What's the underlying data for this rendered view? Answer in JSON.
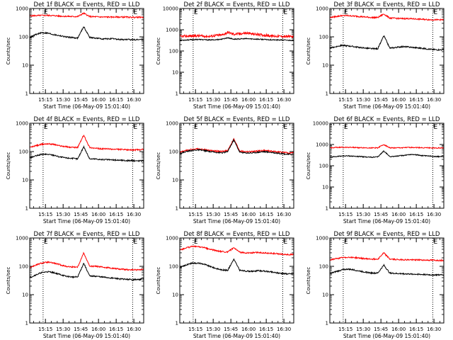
{
  "chart_data": [
    {
      "type": "line",
      "title": "Det 1f BLACK = Events, RED = LLD",
      "xlabel": "Start Time (06-May-09 15:01:40)",
      "ylabel": "Counts/sec",
      "ylim": [
        1,
        1000
      ],
      "y_scale": "log",
      "y_ticks": [
        "1",
        "10",
        "100",
        "1000"
      ],
      "x_ticks": [
        "15:15",
        "15:30",
        "15:45",
        "16:00",
        "16:15",
        "16:30"
      ],
      "grid": false,
      "markers": [
        {
          "label": "E",
          "x_min": 13
        },
        {
          "label": "E",
          "x_min": 89
        }
      ],
      "series": [
        {
          "color": "#ff0000",
          "values": [
            550,
            560,
            570,
            570,
            560,
            540,
            530,
            520,
            520,
            680,
            520,
            510,
            500,
            500,
            500,
            500,
            500,
            490,
            490,
            490
          ]
        },
        {
          "color": "#000000",
          "values": [
            95,
            120,
            140,
            135,
            120,
            110,
            100,
            95,
            90,
            230,
            95,
            90,
            85,
            85,
            85,
            80,
            80,
            80,
            80,
            80
          ]
        }
      ]
    },
    {
      "type": "line",
      "title": "Det 2f BLACK = Events, RED = LLD",
      "xlabel": "Start Time (06-May-09 15:01:40)",
      "ylabel": "Counts/sec",
      "ylim": [
        1,
        10000
      ],
      "y_scale": "log",
      "y_ticks": [
        "1",
        "10",
        "100",
        "1000",
        "10000"
      ],
      "x_ticks": [
        "15:15",
        "15:30",
        "15:45",
        "16:00",
        "16:15",
        "16:30"
      ],
      "grid": false,
      "markers": [
        {
          "label": "E",
          "x_min": 13
        },
        {
          "label": "E",
          "x_min": 89
        }
      ],
      "series": [
        {
          "color": "#ff0000",
          "values": [
            480,
            500,
            510,
            520,
            500,
            490,
            540,
            560,
            760,
            620,
            650,
            700,
            640,
            600,
            560,
            520,
            500,
            490,
            480,
            470
          ]
        },
        {
          "color": "#000000",
          "values": [
            320,
            330,
            340,
            350,
            340,
            330,
            340,
            360,
            420,
            360,
            370,
            380,
            370,
            360,
            350,
            340,
            330,
            330,
            320,
            320
          ]
        }
      ]
    },
    {
      "type": "line",
      "title": "Det 3f BLACK = Events, RED = LLD",
      "xlabel": "Start Time (06-May-09 15:01:40)",
      "ylabel": "Counts/sec",
      "ylim": [
        1,
        1000
      ],
      "y_scale": "log",
      "y_ticks": [
        "1",
        "10",
        "100",
        "1000"
      ],
      "x_ticks": [
        "15:15",
        "15:30",
        "15:45",
        "16:00",
        "16:15",
        "16:30"
      ],
      "grid": false,
      "markers": [
        {
          "label": "E",
          "x_min": 13
        },
        {
          "label": "E",
          "x_min": 89
        }
      ],
      "series": [
        {
          "color": "#ff0000",
          "values": [
            480,
            520,
            560,
            560,
            540,
            520,
            500,
            480,
            480,
            640,
            460,
            450,
            440,
            440,
            430,
            420,
            410,
            400,
            400,
            400
          ]
        },
        {
          "color": "#000000",
          "values": [
            40,
            45,
            50,
            48,
            45,
            42,
            40,
            38,
            38,
            110,
            40,
            42,
            45,
            44,
            42,
            40,
            38,
            36,
            35,
            35
          ]
        }
      ]
    },
    {
      "type": "line",
      "title": "Det 4f BLACK = Events, RED = LLD",
      "xlabel": "Start Time (06-May-09 15:01:40)",
      "ylabel": "Counts/sec",
      "ylim": [
        1,
        1000
      ],
      "y_scale": "log",
      "y_ticks": [
        "1",
        "10",
        "100",
        "1000"
      ],
      "x_ticks": [
        "15:15",
        "15:30",
        "15:45",
        "16:00",
        "16:15",
        "16:30"
      ],
      "grid": false,
      "markers": [
        {
          "label": "E",
          "x_min": 13
        },
        {
          "label": "E",
          "x_min": 89
        }
      ],
      "series": [
        {
          "color": "#ff0000",
          "values": [
            140,
            160,
            180,
            190,
            180,
            160,
            150,
            140,
            140,
            380,
            140,
            130,
            125,
            125,
            120,
            120,
            115,
            115,
            115,
            120
          ]
        },
        {
          "color": "#000000",
          "values": [
            60,
            70,
            80,
            80,
            75,
            65,
            60,
            58,
            55,
            150,
            55,
            55,
            52,
            52,
            50,
            50,
            48,
            48,
            47,
            48
          ]
        }
      ]
    },
    {
      "type": "line",
      "title": "Det 5f BLACK = Events, RED = LLD",
      "xlabel": "Start Time (06-May-09 15:01:40)",
      "ylabel": "Counts/sec",
      "ylim": [
        1,
        1000
      ],
      "y_scale": "log",
      "y_ticks": [
        "1",
        "10",
        "100",
        "1000"
      ],
      "x_ticks": [
        "15:15",
        "15:30",
        "15:45",
        "16:00",
        "16:15",
        "16:30"
      ],
      "grid": false,
      "markers": [
        {
          "label": "E",
          "x_min": 13
        },
        {
          "label": "E",
          "x_min": 89
        }
      ],
      "series": [
        {
          "color": "#ff0000",
          "values": [
            95,
            110,
            120,
            125,
            120,
            110,
            105,
            100,
            110,
            280,
            105,
            100,
            100,
            105,
            110,
            105,
            100,
            95,
            90,
            90
          ]
        },
        {
          "color": "#000000",
          "values": [
            85,
            100,
            110,
            115,
            110,
            100,
            95,
            90,
            100,
            260,
            95,
            90,
            90,
            95,
            100,
            95,
            90,
            85,
            80,
            80
          ]
        }
      ]
    },
    {
      "type": "line",
      "title": "Det 6f BLACK = Events, RED = LLD",
      "xlabel": "Start Time (06-May-09 15:01:40)",
      "ylabel": "Counts/sec",
      "ylim": [
        1,
        10000
      ],
      "y_scale": "log",
      "y_ticks": [
        "1",
        "10",
        "100",
        "1000",
        "10000"
      ],
      "x_ticks": [
        "15:15",
        "15:30",
        "15:45",
        "16:00",
        "16:15",
        "16:30"
      ],
      "grid": false,
      "markers": [
        {
          "label": "E",
          "x_min": 13
        },
        {
          "label": "E",
          "x_min": 89
        }
      ],
      "series": [
        {
          "color": "#ff0000",
          "values": [
            700,
            720,
            740,
            740,
            730,
            710,
            700,
            690,
            700,
            1000,
            700,
            690,
            700,
            720,
            730,
            710,
            700,
            690,
            690,
            690
          ]
        },
        {
          "color": "#000000",
          "values": [
            250,
            270,
            290,
            290,
            280,
            270,
            260,
            250,
            260,
            500,
            270,
            280,
            300,
            330,
            340,
            310,
            290,
            280,
            270,
            270
          ]
        }
      ]
    },
    {
      "type": "line",
      "title": "Det 7f BLACK = Events, RED = LLD",
      "xlabel": "Start Time (06-May-09 15:01:40)",
      "ylabel": "Counts/sec",
      "ylim": [
        1,
        1000
      ],
      "y_scale": "log",
      "y_ticks": [
        "1",
        "10",
        "100",
        "1000"
      ],
      "x_ticks": [
        "15:15",
        "15:30",
        "15:45",
        "16:00",
        "16:15",
        "16:30"
      ],
      "grid": false,
      "markers": [
        {
          "label": "E",
          "x_min": 13
        },
        {
          "label": "E",
          "x_min": 89
        }
      ],
      "series": [
        {
          "color": "#ff0000",
          "values": [
            90,
            110,
            130,
            140,
            130,
            115,
            100,
            95,
            95,
            300,
            100,
            100,
            95,
            90,
            85,
            80,
            78,
            75,
            75,
            78
          ]
        },
        {
          "color": "#000000",
          "values": [
            40,
            50,
            60,
            65,
            60,
            52,
            45,
            42,
            42,
            130,
            45,
            45,
            42,
            40,
            38,
            36,
            35,
            34,
            34,
            36
          ]
        }
      ]
    },
    {
      "type": "line",
      "title": "Det 8f BLACK = Events, RED = LLD",
      "xlabel": "Start Time (06-May-09 15:01:40)",
      "ylabel": "Counts/sec",
      "ylim": [
        1,
        1000
      ],
      "y_scale": "log",
      "y_ticks": [
        "1",
        "10",
        "100",
        "1000"
      ],
      "x_ticks": [
        "15:15",
        "15:30",
        "15:45",
        "16:00",
        "16:15",
        "16:30"
      ],
      "grid": false,
      "markers": [
        {
          "label": "E",
          "x_min": 13
        },
        {
          "label": "E",
          "x_min": 89
        }
      ],
      "series": [
        {
          "color": "#ff0000",
          "values": [
            380,
            440,
            500,
            500,
            460,
            400,
            360,
            330,
            320,
            450,
            310,
            300,
            300,
            310,
            300,
            290,
            280,
            270,
            260,
            260
          ]
        },
        {
          "color": "#000000",
          "values": [
            90,
            110,
            130,
            130,
            120,
            100,
            85,
            75,
            72,
            180,
            72,
            68,
            66,
            70,
            68,
            64,
            60,
            56,
            54,
            55
          ]
        }
      ]
    },
    {
      "type": "line",
      "title": "Det 9f BLACK = Events, RED = LLD",
      "xlabel": "Start Time (06-May-09 15:01:40)",
      "ylabel": "Counts/sec",
      "ylim": [
        1,
        1000
      ],
      "y_scale": "log",
      "y_ticks": [
        "1",
        "10",
        "100",
        "1000"
      ],
      "x_ticks": [
        "15:15",
        "15:30",
        "15:45",
        "16:00",
        "16:15",
        "16:30"
      ],
      "grid": false,
      "markers": [
        {
          "label": "E",
          "x_min": 13
        },
        {
          "label": "E",
          "x_min": 89
        }
      ],
      "series": [
        {
          "color": "#ff0000",
          "values": [
            170,
            185,
            200,
            210,
            205,
            195,
            185,
            180,
            180,
            300,
            180,
            175,
            172,
            170,
            170,
            168,
            165,
            165,
            162,
            162
          ]
        },
        {
          "color": "#000000",
          "values": [
            55,
            65,
            75,
            80,
            75,
            68,
            62,
            58,
            58,
            110,
            58,
            56,
            55,
            54,
            53,
            52,
            51,
            50,
            50,
            50
          ]
        }
      ]
    }
  ]
}
